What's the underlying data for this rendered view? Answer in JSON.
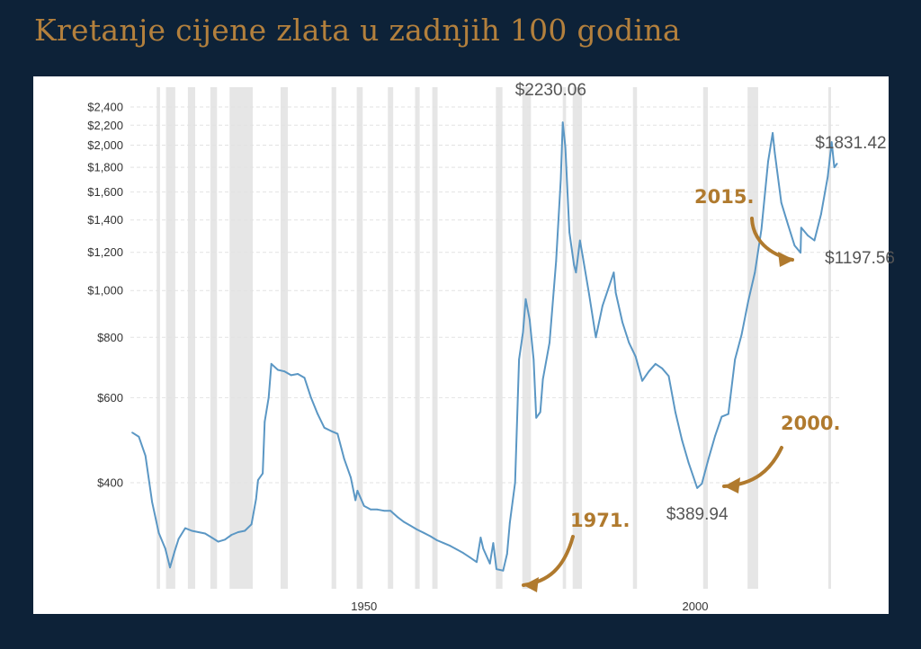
{
  "title": "Kretanje cijene zlata u zadnjih 100 godina",
  "colors": {
    "background": "#0d2238",
    "panel": "#ffffff",
    "title": "#b3803d",
    "line": "#5b97c4",
    "recession": "#e6e6e6",
    "annotation": "#b07a2e",
    "grid": "#e2e2e2"
  },
  "chart_data": {
    "type": "line",
    "title": "Kretanje cijene zlata u zadnjih 100 godina",
    "xlabel": "",
    "ylabel": "",
    "scale": "log",
    "grid": true,
    "xlim": [
      1915,
      2022
    ],
    "ylim": [
      262,
      2500
    ],
    "y_ticks": [
      400,
      600,
      800,
      1000,
      1200,
      1400,
      1600,
      1800,
      2000,
      2200,
      2400
    ],
    "y_tick_labels": [
      "$400",
      "$600",
      "$800",
      "$1,000",
      "$1,200",
      "$1,400",
      "$1,600",
      "$1,800",
      "$2,000",
      "$2,200",
      "$2,400"
    ],
    "x_ticks": [
      1950,
      2000
    ],
    "x_tick_labels": [
      "1950",
      "2000"
    ],
    "recession_bands": [
      [
        1918.7,
        1919.2
      ],
      [
        1920.1,
        1921.5
      ],
      [
        1923.4,
        1924.5
      ],
      [
        1926.8,
        1927.8
      ],
      [
        1929.7,
        1933.2
      ],
      [
        1937.4,
        1938.5
      ],
      [
        1945.1,
        1945.8
      ],
      [
        1948.9,
        1949.8
      ],
      [
        1953.6,
        1954.4
      ],
      [
        1957.7,
        1958.4
      ],
      [
        1960.3,
        1961.1
      ],
      [
        1969.9,
        1970.9
      ],
      [
        1973.9,
        1975.2
      ],
      [
        1980.0,
        1980.5
      ],
      [
        1981.5,
        1982.9
      ],
      [
        1990.6,
        1991.2
      ],
      [
        2001.2,
        2001.9
      ],
      [
        2007.9,
        2009.5
      ],
      [
        2020.1,
        2020.5
      ]
    ],
    "series": [
      {
        "name": "",
        "points": [
          [
            1915,
            508
          ],
          [
            1916,
            498
          ],
          [
            1917,
            455
          ],
          [
            1918,
            365
          ],
          [
            1919,
            315
          ],
          [
            1920,
            292
          ],
          [
            1920.7,
            267
          ],
          [
            1921.4,
            288
          ],
          [
            1922,
            306
          ],
          [
            1923,
            322
          ],
          [
            1924,
            318
          ],
          [
            1925,
            316
          ],
          [
            1926,
            314
          ],
          [
            1927,
            308
          ],
          [
            1928,
            302
          ],
          [
            1929,
            305
          ],
          [
            1930,
            312
          ],
          [
            1931,
            316
          ],
          [
            1932,
            318
          ],
          [
            1933,
            328
          ],
          [
            1933.7,
            370
          ],
          [
            1934,
            405
          ],
          [
            1934.7,
            418
          ],
          [
            1935,
            535
          ],
          [
            1935.6,
            600
          ],
          [
            1936,
            705
          ],
          [
            1937,
            685
          ],
          [
            1938,
            680
          ],
          [
            1939,
            668
          ],
          [
            1940,
            672
          ],
          [
            1941,
            660
          ],
          [
            1942,
            600
          ],
          [
            1943,
            555
          ],
          [
            1944,
            520
          ],
          [
            1945,
            512
          ],
          [
            1946,
            505
          ],
          [
            1947,
            448
          ],
          [
            1948,
            410
          ],
          [
            1948.7,
            368
          ],
          [
            1949,
            385
          ],
          [
            1950,
            358
          ],
          [
            1951,
            352
          ],
          [
            1952,
            352
          ],
          [
            1953,
            350
          ],
          [
            1954,
            350
          ],
          [
            1955,
            340
          ],
          [
            1956,
            332
          ],
          [
            1957,
            326
          ],
          [
            1958,
            320
          ],
          [
            1959,
            315
          ],
          [
            1960,
            310
          ],
          [
            1961,
            304
          ],
          [
            1962,
            300
          ],
          [
            1963,
            296
          ],
          [
            1964,
            291
          ],
          [
            1965,
            286
          ],
          [
            1966,
            280
          ],
          [
            1967,
            274
          ],
          [
            1967.6,
            308
          ],
          [
            1968,
            292
          ],
          [
            1969,
            272
          ],
          [
            1969.5,
            300
          ],
          [
            1970,
            265
          ],
          [
            1971,
            263
          ],
          [
            1971.6,
            285
          ],
          [
            1972,
            330
          ],
          [
            1972.8,
            400
          ],
          [
            1973.4,
            720
          ],
          [
            1974,
            820
          ],
          [
            1974.4,
            960
          ],
          [
            1975,
            870
          ],
          [
            1975.6,
            720
          ],
          [
            1976,
            545
          ],
          [
            1976.6,
            560
          ],
          [
            1977,
            655
          ],
          [
            1978,
            780
          ],
          [
            1979,
            1150
          ],
          [
            1979.7,
            1700
          ],
          [
            1980,
            2230
          ],
          [
            1980.4,
            1980
          ],
          [
            1981,
            1320
          ],
          [
            1981.7,
            1130
          ],
          [
            1982,
            1090
          ],
          [
            1982.6,
            1270
          ],
          [
            1983,
            1180
          ],
          [
            1984,
            980
          ],
          [
            1985,
            800
          ],
          [
            1986,
            930
          ],
          [
            1987,
            1020
          ],
          [
            1987.7,
            1090
          ],
          [
            1988,
            990
          ],
          [
            1989,
            860
          ],
          [
            1990,
            780
          ],
          [
            1991,
            730
          ],
          [
            1992,
            650
          ],
          [
            1993,
            680
          ],
          [
            1994,
            705
          ],
          [
            1995,
            690
          ],
          [
            1996,
            665
          ],
          [
            1997,
            560
          ],
          [
            1998,
            490
          ],
          [
            1999,
            440
          ],
          [
            2000.3,
            390
          ],
          [
            2001,
            398
          ],
          [
            2002,
            448
          ],
          [
            2003,
            500
          ],
          [
            2004,
            548
          ],
          [
            2005,
            555
          ],
          [
            2006,
            720
          ],
          [
            2007,
            810
          ],
          [
            2008,
            950
          ],
          [
            2009,
            1090
          ],
          [
            2010,
            1340
          ],
          [
            2011,
            1850
          ],
          [
            2011.7,
            2120
          ],
          [
            2012,
            1930
          ],
          [
            2013,
            1520
          ],
          [
            2014,
            1370
          ],
          [
            2015,
            1240
          ],
          [
            2015.9,
            1198
          ],
          [
            2016,
            1350
          ],
          [
            2017,
            1300
          ],
          [
            2018,
            1270
          ],
          [
            2019,
            1440
          ],
          [
            2020,
            1720
          ],
          [
            2020.6,
            2030
          ],
          [
            2021,
            1800
          ],
          [
            2021.4,
            1831.42
          ]
        ]
      }
    ],
    "annotations": [
      {
        "label": "$2230.06",
        "x": 1980,
        "y": 2230.06
      },
      {
        "label": "$1831.42",
        "x": 2021.4,
        "y": 1831.42
      },
      {
        "label": "$1197.56",
        "x": 2015.9,
        "y": 1197.56
      },
      {
        "label": "$389.94",
        "x": 2000.3,
        "y": 389.94
      }
    ],
    "year_notes": [
      {
        "label": "1971.",
        "x": 1971,
        "y": 263
      },
      {
        "label": "2000.",
        "x": 2000.3,
        "y": 389.94
      },
      {
        "label": "2015.",
        "x": 2015.9,
        "y": 1197.56
      }
    ]
  }
}
